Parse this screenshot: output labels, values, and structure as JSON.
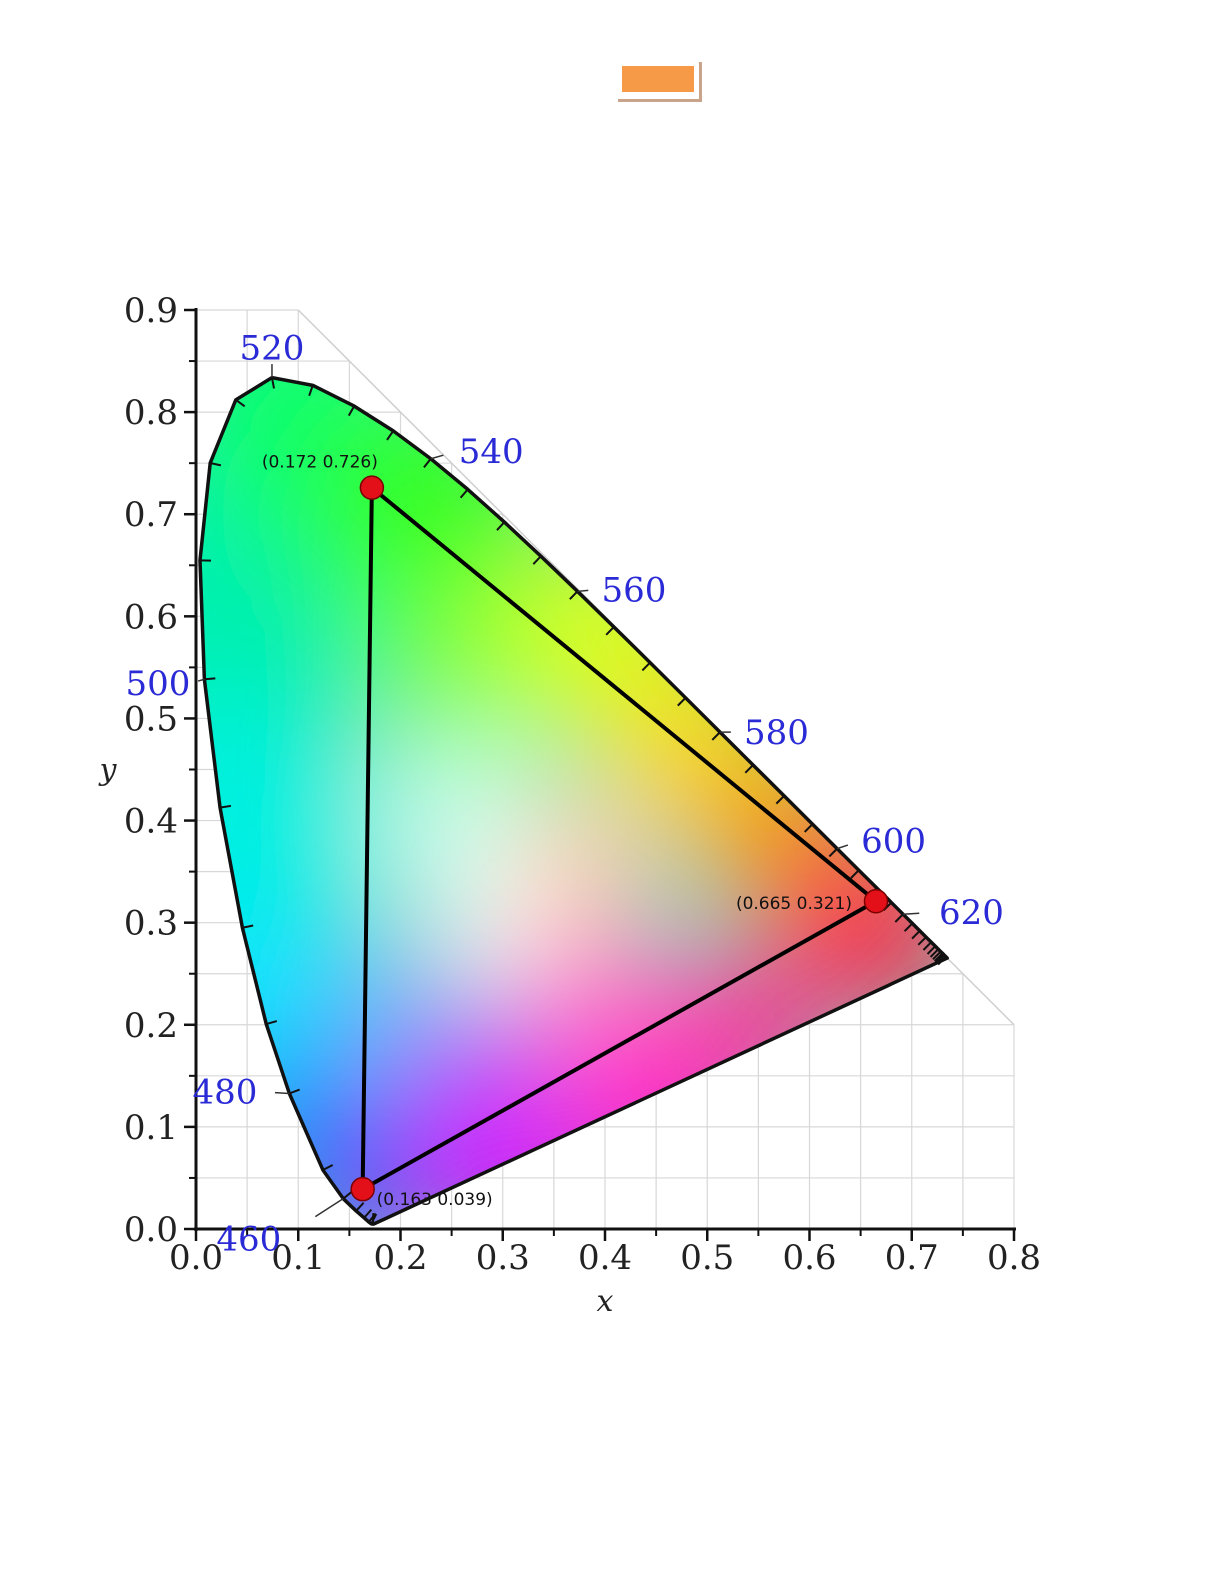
{
  "colors": {
    "badge": "#f79a48",
    "triangle": "#000000",
    "primary_points": "#e3101a",
    "wavelength_labels": "#2a2ad6",
    "grid": "#d8d8d8"
  },
  "chart_data": {
    "type": "scatter",
    "title": "",
    "xlabel": "x",
    "ylabel": "y",
    "xlim": [
      0.0,
      0.8
    ],
    "ylim": [
      0.0,
      0.9
    ],
    "x_ticks": [
      "0.0",
      "0.1",
      "0.2",
      "0.3",
      "0.4",
      "0.5",
      "0.6",
      "0.7",
      "0.8"
    ],
    "y_ticks": [
      "0.0",
      "0.1",
      "0.2",
      "0.3",
      "0.4",
      "0.5",
      "0.6",
      "0.7",
      "0.8",
      "0.9"
    ],
    "grid": true,
    "spectral_locus": [
      [
        0.1741,
        0.005
      ],
      [
        0.173,
        0.0048
      ],
      [
        0.1714,
        0.0051
      ],
      [
        0.1689,
        0.0069
      ],
      [
        0.1644,
        0.0109
      ],
      [
        0.1566,
        0.0177
      ],
      [
        0.144,
        0.0297
      ],
      [
        0.1241,
        0.0578
      ],
      [
        0.0913,
        0.1327
      ],
      [
        0.0687,
        0.2007
      ],
      [
        0.0454,
        0.295
      ],
      [
        0.0235,
        0.4127
      ],
      [
        0.0082,
        0.5384
      ],
      [
        0.0039,
        0.6548
      ],
      [
        0.0139,
        0.7502
      ],
      [
        0.0389,
        0.812
      ],
      [
        0.0743,
        0.8338
      ],
      [
        0.1142,
        0.8262
      ],
      [
        0.1547,
        0.8059
      ],
      [
        0.1929,
        0.7816
      ],
      [
        0.2296,
        0.7543
      ],
      [
        0.2658,
        0.7243
      ],
      [
        0.3016,
        0.6923
      ],
      [
        0.3373,
        0.6589
      ],
      [
        0.3731,
        0.6245
      ],
      [
        0.4087,
        0.5896
      ],
      [
        0.4441,
        0.5547
      ],
      [
        0.4788,
        0.5202
      ],
      [
        0.5125,
        0.4866
      ],
      [
        0.5448,
        0.4544
      ],
      [
        0.5752,
        0.4242
      ],
      [
        0.6029,
        0.3965
      ],
      [
        0.627,
        0.3725
      ],
      [
        0.6482,
        0.3514
      ],
      [
        0.6658,
        0.334
      ],
      [
        0.6801,
        0.3197
      ],
      [
        0.6915,
        0.3083
      ],
      [
        0.7006,
        0.2993
      ],
      [
        0.7079,
        0.292
      ],
      [
        0.714,
        0.2859
      ],
      [
        0.719,
        0.2809
      ],
      [
        0.723,
        0.277
      ],
      [
        0.726,
        0.274
      ],
      [
        0.7283,
        0.2717
      ],
      [
        0.73,
        0.27
      ],
      [
        0.7311,
        0.2689
      ],
      [
        0.732,
        0.268
      ],
      [
        0.7334,
        0.2666
      ],
      [
        0.7347,
        0.2653
      ]
    ],
    "wavelength_labels": [
      {
        "label": "460",
        "x": 0.144,
        "y": 0.0297
      },
      {
        "label": "480",
        "x": 0.0913,
        "y": 0.1327
      },
      {
        "label": "500",
        "x": 0.0082,
        "y": 0.5384
      },
      {
        "label": "520",
        "x": 0.0743,
        "y": 0.8338
      },
      {
        "label": "540",
        "x": 0.2296,
        "y": 0.7543
      },
      {
        "label": "560",
        "x": 0.3731,
        "y": 0.6245
      },
      {
        "label": "580",
        "x": 0.5125,
        "y": 0.4866
      },
      {
        "label": "600",
        "x": 0.627,
        "y": 0.3725
      },
      {
        "label": "620",
        "x": 0.6915,
        "y": 0.3083
      }
    ],
    "primaries": [
      {
        "x": 0.172,
        "y": 0.726,
        "label": "(0.172 0.726)"
      },
      {
        "x": 0.665,
        "y": 0.321,
        "label": "(0.665 0.321)"
      },
      {
        "x": 0.163,
        "y": 0.039,
        "label": "(0.163 0.039)"
      }
    ]
  }
}
